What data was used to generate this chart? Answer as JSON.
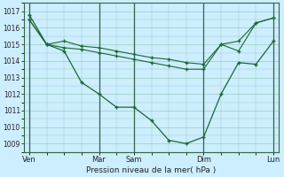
{
  "bg_color": "#cceeff",
  "grid_color": "#99ccbb",
  "line_color": "#1a6632",
  "xlabel": "Pression niveau de la mer( hPa )",
  "ylim": [
    1008.5,
    1017.5
  ],
  "yticks": [
    1009,
    1010,
    1011,
    1012,
    1013,
    1014,
    1015,
    1016,
    1017
  ],
  "xtick_positions": [
    0,
    4,
    6,
    10,
    14
  ],
  "xtick_labels": [
    "Ven",
    "Mar",
    "Sam",
    "Dim",
    "Lun"
  ],
  "vlines": [
    0,
    4,
    6,
    10,
    14
  ],
  "xlim": [
    -0.3,
    14.3
  ],
  "flat_line1": {
    "x": [
      0,
      1,
      2,
      3,
      4,
      5,
      6,
      7,
      8,
      9,
      10,
      11,
      12,
      13,
      14
    ],
    "y": [
      1016.5,
      1015.0,
      1015.2,
      1014.9,
      1014.8,
      1014.6,
      1014.4,
      1014.2,
      1014.1,
      1013.9,
      1013.8,
      1015.0,
      1015.2,
      1016.3,
      1016.6
    ]
  },
  "flat_line2": {
    "x": [
      0,
      1,
      2,
      3,
      4,
      5,
      6,
      7,
      8,
      9,
      10,
      11,
      12,
      13,
      14
    ],
    "y": [
      1016.5,
      1015.0,
      1014.8,
      1014.7,
      1014.5,
      1014.3,
      1014.1,
      1013.9,
      1013.7,
      1013.5,
      1013.5,
      1015.0,
      1014.6,
      1016.3,
      1016.6
    ]
  },
  "dip_line": {
    "x": [
      0,
      1,
      2,
      3,
      4,
      5,
      6,
      7,
      8,
      9,
      10,
      11,
      12,
      13,
      14
    ],
    "y": [
      1016.8,
      1015.0,
      1014.6,
      1012.7,
      1012.0,
      1011.2,
      1011.2,
      1010.4,
      1009.2,
      1009.0,
      1009.4,
      1012.0,
      1013.9,
      1013.8,
      1015.2
    ]
  }
}
